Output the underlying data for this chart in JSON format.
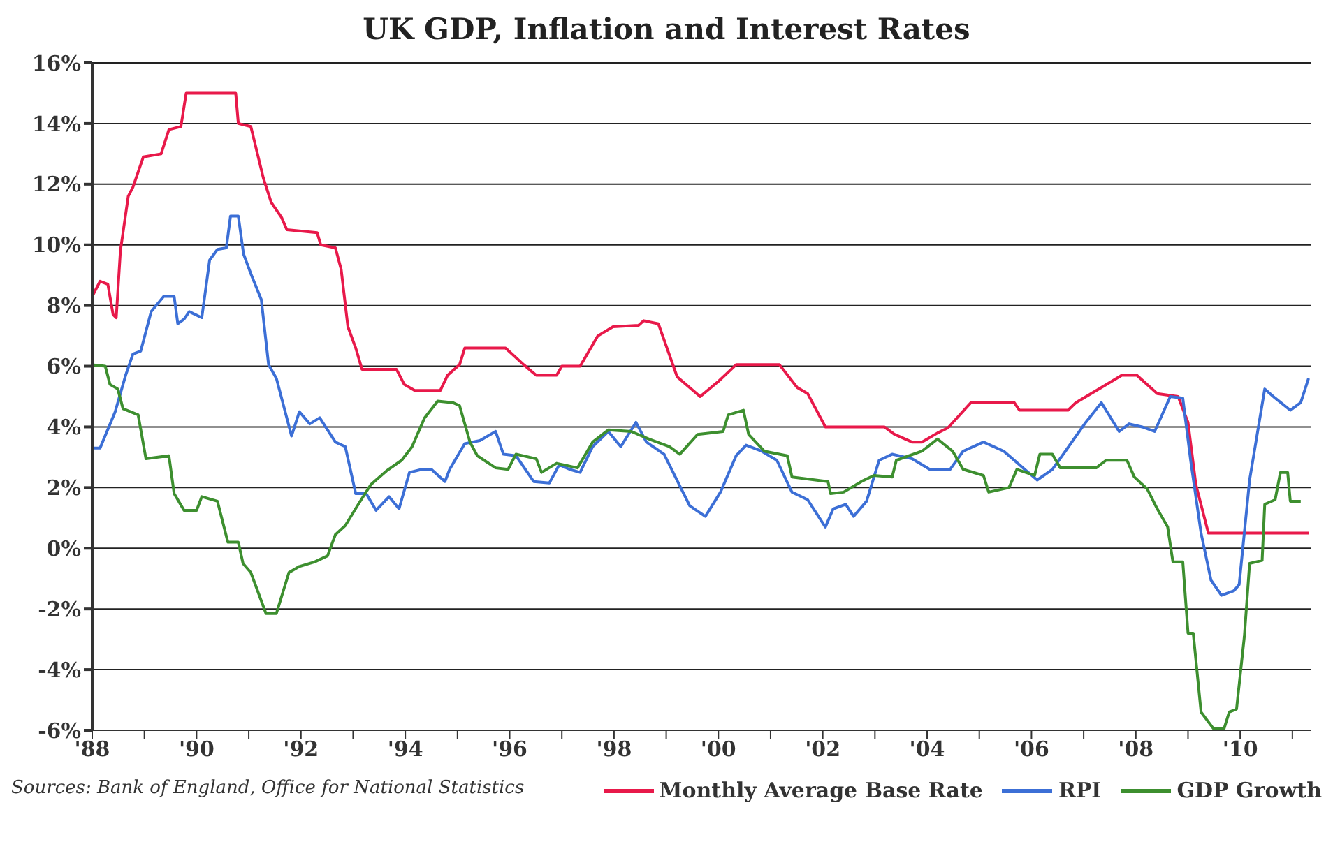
{
  "chart_data": {
    "type": "line",
    "title": "UK GDP, Inflation and Interest Rates",
    "annotations": [
      "Sources: Bank of England, Office for National Statistics"
    ],
    "xlim": [
      1988,
      2011.35
    ],
    "xticks": [
      {
        "value": 1988,
        "label": "'88"
      },
      {
        "value": 1989,
        "label": null
      },
      {
        "value": 1990,
        "label": "'90"
      },
      {
        "value": 1991,
        "label": null
      },
      {
        "value": 1992,
        "label": "'92"
      },
      {
        "value": 1993,
        "label": null
      },
      {
        "value": 1994,
        "label": "'94"
      },
      {
        "value": 1995,
        "label": null
      },
      {
        "value": 1996,
        "label": "'96"
      },
      {
        "value": 1997,
        "label": null
      },
      {
        "value": 1998,
        "label": "'98"
      },
      {
        "value": 1999,
        "label": null
      },
      {
        "value": 2000,
        "label": "'00"
      },
      {
        "value": 2001,
        "label": null
      },
      {
        "value": 2002,
        "label": "'02"
      },
      {
        "value": 2003,
        "label": null
      },
      {
        "value": 2004,
        "label": "'04"
      },
      {
        "value": 2005,
        "label": null
      },
      {
        "value": 2006,
        "label": "'06"
      },
      {
        "value": 2007,
        "label": null
      },
      {
        "value": 2008,
        "label": "'08"
      },
      {
        "value": 2009,
        "label": null
      },
      {
        "value": 2010,
        "label": "'10"
      },
      {
        "value": 2011,
        "label": null
      }
    ],
    "ylim": [
      -6,
      16
    ],
    "yticks": [
      {
        "value": -6,
        "label": "-6%"
      },
      {
        "value": -4,
        "label": "-4%"
      },
      {
        "value": -2,
        "label": "-2%"
      },
      {
        "value": 0,
        "label": "0%"
      },
      {
        "value": 2,
        "label": "2%"
      },
      {
        "value": 4,
        "label": "4%"
      },
      {
        "value": 6,
        "label": "6%"
      },
      {
        "value": 8,
        "label": "8%"
      },
      {
        "value": 10,
        "label": "10%"
      },
      {
        "value": 12,
        "label": "12%"
      },
      {
        "value": 14,
        "label": "14%"
      },
      {
        "value": 16,
        "label": "16%"
      }
    ],
    "grid": "y",
    "legend": "bottom right",
    "marker": "none",
    "line_style": "solid",
    "series": [
      {
        "name": "Monthly Average Base Rate",
        "color": "#e8194a",
        "x": [
          1988.0,
          1988.15,
          1988.3,
          1988.4,
          1988.46,
          1988.54,
          1988.69,
          1988.78,
          1988.98,
          1989.32,
          1989.47,
          1989.7,
          1989.8,
          1990.75,
          1990.8,
          1991.04,
          1991.28,
          1991.43,
          1991.63,
          1991.73,
          1992.31,
          1992.38,
          1992.66,
          1992.77,
          1992.9,
          1993.05,
          1993.17,
          1993.83,
          1993.98,
          1994.18,
          1994.67,
          1994.81,
          1995.04,
          1995.14,
          1995.92,
          1996.27,
          1996.51,
          1996.9,
          1997.0,
          1997.35,
          1997.69,
          1997.98,
          1998.47,
          1998.57,
          1998.85,
          1999.21,
          1999.65,
          2000.0,
          2000.34,
          2001.17,
          2001.51,
          2001.71,
          2002.05,
          2003.18,
          2003.37,
          2003.71,
          2003.9,
          2004.2,
          2004.4,
          2004.84,
          2005.67,
          2005.77,
          2006.7,
          2006.85,
          2007.34,
          2007.73,
          2008.02,
          2008.41,
          2008.81,
          2009.0,
          2009.15,
          2009.39,
          2011.31
        ],
        "values": [
          8.3,
          8.8,
          8.7,
          7.7,
          7.6,
          9.8,
          11.6,
          11.9,
          12.9,
          13.0,
          13.8,
          13.9,
          15.0,
          15.0,
          14.0,
          13.9,
          12.2,
          11.4,
          10.9,
          10.5,
          10.4,
          10.0,
          9.9,
          9.2,
          7.3,
          6.6,
          5.9,
          5.9,
          5.4,
          5.2,
          5.2,
          5.7,
          6.05,
          6.6,
          6.6,
          6.05,
          5.7,
          5.7,
          6.0,
          6.0,
          7.0,
          7.3,
          7.35,
          7.5,
          7.4,
          5.65,
          5.0,
          5.5,
          6.05,
          6.05,
          5.3,
          5.1,
          4.0,
          4.0,
          3.76,
          3.5,
          3.5,
          3.8,
          3.97,
          4.8,
          4.8,
          4.55,
          4.55,
          4.8,
          5.3,
          5.7,
          5.7,
          5.1,
          5.0,
          4.15,
          2.1,
          0.5,
          0.5
        ]
      },
      {
        "name": "RPI",
        "color": "#3c6fd6",
        "x": [
          1988.0,
          1988.15,
          1988.44,
          1988.64,
          1988.78,
          1988.93,
          1989.13,
          1989.37,
          1989.57,
          1989.64,
          1989.76,
          1989.86,
          1990.1,
          1990.25,
          1990.4,
          1990.57,
          1990.65,
          1990.8,
          1990.9,
          1991.04,
          1991.24,
          1991.38,
          1991.53,
          1991.82,
          1991.97,
          1992.17,
          1992.36,
          1992.66,
          1992.85,
          1993.05,
          1993.25,
          1993.44,
          1993.69,
          1993.88,
          1994.08,
          1994.32,
          1994.5,
          1994.76,
          1994.85,
          1995.14,
          1995.43,
          1995.73,
          1995.88,
          1996.12,
          1996.46,
          1996.76,
          1996.95,
          1997.15,
          1997.35,
          1997.59,
          1997.89,
          1998.13,
          1998.42,
          1998.62,
          1998.96,
          1999.45,
          1999.75,
          2000.04,
          2000.34,
          2000.53,
          2000.83,
          2001.12,
          2001.41,
          2001.71,
          2002.05,
          2002.2,
          2002.44,
          2002.59,
          2002.84,
          2003.08,
          2003.33,
          2003.71,
          2004.05,
          2004.44,
          2004.69,
          2005.08,
          2005.47,
          2005.87,
          2006.11,
          2006.4,
          2006.65,
          2007.04,
          2007.34,
          2007.68,
          2007.87,
          2008.12,
          2008.36,
          2008.66,
          2008.9,
          2009.05,
          2009.25,
          2009.44,
          2009.64,
          2009.88,
          2009.98,
          2010.18,
          2010.32,
          2010.47,
          2010.67,
          2010.96,
          2011.16,
          2011.31
        ],
        "values": [
          3.3,
          3.3,
          4.5,
          5.7,
          6.4,
          6.5,
          7.8,
          8.3,
          8.3,
          7.4,
          7.55,
          7.8,
          7.6,
          9.5,
          9.85,
          9.9,
          10.95,
          10.95,
          9.7,
          9.05,
          8.2,
          6.05,
          5.6,
          3.7,
          4.5,
          4.1,
          4.3,
          3.5,
          3.35,
          1.8,
          1.8,
          1.25,
          1.7,
          1.3,
          2.5,
          2.6,
          2.6,
          2.2,
          2.6,
          3.45,
          3.55,
          3.85,
          3.1,
          3.05,
          2.2,
          2.15,
          2.75,
          2.6,
          2.5,
          3.35,
          3.85,
          3.35,
          4.15,
          3.5,
          3.1,
          1.4,
          1.05,
          1.85,
          3.05,
          3.4,
          3.2,
          2.9,
          1.85,
          1.6,
          0.7,
          1.3,
          1.45,
          1.05,
          1.55,
          2.9,
          3.1,
          2.95,
          2.6,
          2.6,
          3.2,
          3.5,
          3.2,
          2.6,
          2.25,
          2.6,
          3.2,
          4.15,
          4.8,
          3.85,
          4.1,
          4.0,
          3.85,
          5.0,
          4.95,
          2.9,
          0.5,
          -1.05,
          -1.55,
          -1.4,
          -1.2,
          2.25,
          3.7,
          5.25,
          4.95,
          4.55,
          4.8,
          5.6
        ]
      },
      {
        "name": "GDP Growth",
        "color": "#3d8f2f",
        "x": [
          1988.0,
          1988.25,
          1988.34,
          1988.49,
          1988.59,
          1988.88,
          1989.03,
          1989.47,
          1989.57,
          1989.76,
          1990.0,
          1990.1,
          1990.4,
          1990.6,
          1990.8,
          1990.89,
          1991.04,
          1991.33,
          1991.53,
          1991.77,
          1991.97,
          1992.26,
          1992.51,
          1992.66,
          1992.85,
          1993.1,
          1993.34,
          1993.64,
          1993.93,
          1994.13,
          1994.37,
          1994.62,
          1994.91,
          1995.04,
          1995.24,
          1995.38,
          1995.73,
          1995.97,
          1996.12,
          1996.51,
          1996.61,
          1996.9,
          1997.3,
          1997.59,
          1997.89,
          1998.33,
          1998.67,
          1999.06,
          1999.26,
          1999.6,
          2000.09,
          2000.19,
          2000.48,
          2000.58,
          2000.88,
          2001.32,
          2001.41,
          2002.1,
          2002.15,
          2002.4,
          2002.74,
          2002.98,
          2003.33,
          2003.41,
          2003.9,
          2004.2,
          2004.49,
          2004.69,
          2005.08,
          2005.18,
          2005.57,
          2005.72,
          2006.06,
          2006.16,
          2006.4,
          2006.55,
          2007.24,
          2007.43,
          2007.83,
          2007.97,
          2008.22,
          2008.41,
          2008.61,
          2008.71,
          2008.9,
          2009.0,
          2009.1,
          2009.25,
          2009.49,
          2009.69,
          2009.79,
          2009.93,
          2010.08,
          2010.18,
          2010.42,
          2010.47,
          2010.67,
          2010.77,
          2010.91,
          2010.96,
          2011.16
        ],
        "values": [
          6.05,
          6.0,
          5.4,
          5.25,
          4.6,
          4.4,
          2.95,
          3.05,
          1.8,
          1.25,
          1.25,
          1.7,
          1.55,
          0.2,
          0.2,
          -0.5,
          -0.8,
          -2.15,
          -2.15,
          -0.8,
          -0.6,
          -0.45,
          -0.25,
          0.45,
          0.75,
          1.45,
          2.1,
          2.55,
          2.9,
          3.35,
          4.3,
          4.85,
          4.8,
          4.7,
          3.5,
          3.05,
          2.65,
          2.6,
          3.1,
          2.95,
          2.5,
          2.8,
          2.65,
          3.5,
          3.9,
          3.85,
          3.6,
          3.35,
          3.1,
          3.75,
          3.85,
          4.4,
          4.55,
          3.75,
          3.2,
          3.05,
          2.35,
          2.2,
          1.8,
          1.85,
          2.2,
          2.4,
          2.35,
          2.9,
          3.2,
          3.6,
          3.2,
          2.6,
          2.4,
          1.85,
          2.0,
          2.6,
          2.4,
          3.1,
          3.1,
          2.65,
          2.65,
          2.9,
          2.9,
          2.35,
          1.95,
          1.3,
          0.7,
          -0.45,
          -0.45,
          -2.8,
          -2.8,
          -5.4,
          -5.95,
          -5.95,
          -5.4,
          -5.3,
          -2.9,
          -0.5,
          -0.4,
          1.45,
          1.6,
          2.5,
          2.5,
          1.55,
          1.55
        ]
      }
    ]
  }
}
